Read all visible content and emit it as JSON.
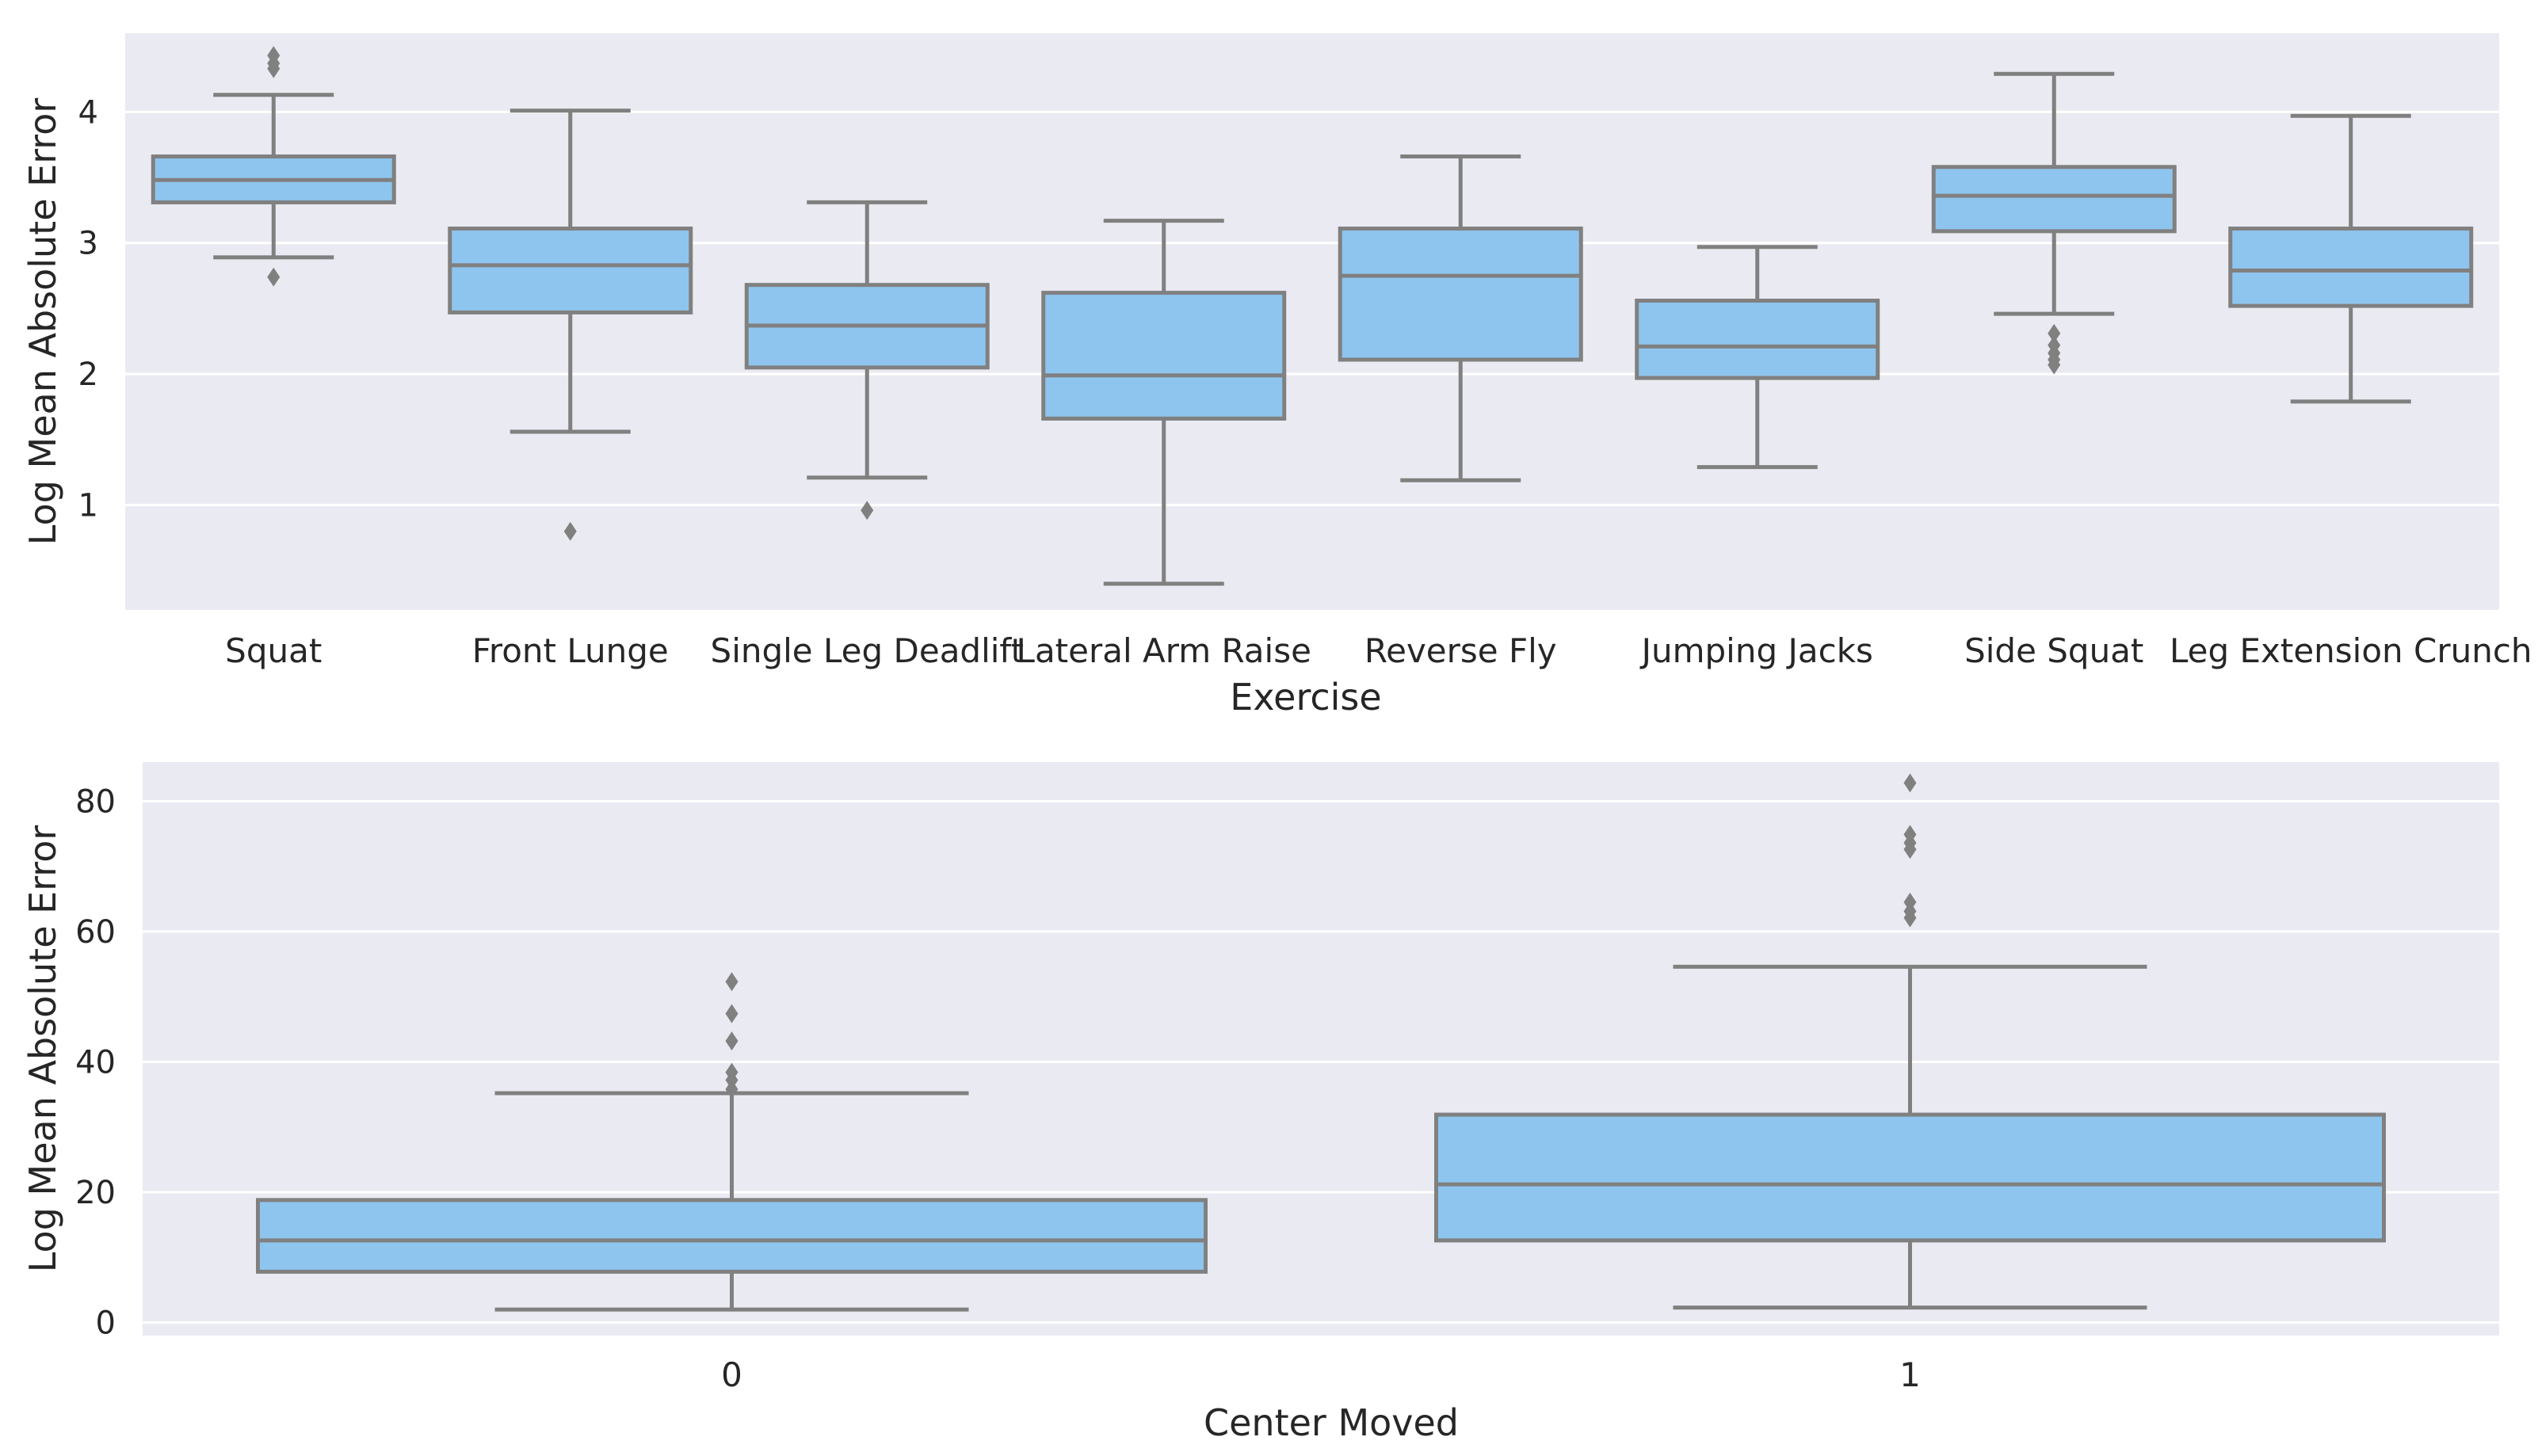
{
  "colors": {
    "plot_background": "#EAEAF2",
    "gridline": "#FFFFFF",
    "box_fill": "#8EC5EE",
    "box_stroke": "#808080"
  },
  "chart_data": [
    {
      "type": "box",
      "xlabel": "Exercise",
      "ylabel": "Log Mean Absolute Error",
      "ylim": [
        0.2,
        4.6
      ],
      "yticks": [
        "1",
        "2",
        "3",
        "4"
      ],
      "grid": true,
      "categories": [
        "Squat",
        "Front Lunge",
        "Single Leg Deadlift",
        "Lateral Arm Raise",
        "Reverse Fly",
        "Jumping Jacks",
        "Side Squat",
        "Leg Extension Crunch"
      ],
      "boxes": [
        {
          "whisker_low": 2.89,
          "q1": 3.31,
          "median": 3.48,
          "q3": 3.66,
          "whisker_high": 4.13,
          "outliers": [
            2.74,
            4.33,
            4.37,
            4.43
          ]
        },
        {
          "whisker_low": 1.56,
          "q1": 2.47,
          "median": 2.83,
          "q3": 3.11,
          "whisker_high": 4.01,
          "outliers": [
            0.8
          ]
        },
        {
          "whisker_low": 1.21,
          "q1": 2.05,
          "median": 2.37,
          "q3": 2.68,
          "whisker_high": 3.31,
          "outliers": [
            0.96
          ]
        },
        {
          "whisker_low": 0.4,
          "q1": 1.66,
          "median": 1.99,
          "q3": 2.62,
          "whisker_high": 3.17,
          "outliers": []
        },
        {
          "whisker_low": 1.19,
          "q1": 2.11,
          "median": 2.75,
          "q3": 3.11,
          "whisker_high": 3.66,
          "outliers": []
        },
        {
          "whisker_low": 1.29,
          "q1": 1.97,
          "median": 2.21,
          "q3": 2.56,
          "whisker_high": 2.97,
          "outliers": []
        },
        {
          "whisker_low": 2.46,
          "q1": 3.09,
          "median": 3.36,
          "q3": 3.58,
          "whisker_high": 4.29,
          "outliers": [
            2.07,
            2.11,
            2.16,
            2.22,
            2.31
          ]
        },
        {
          "whisker_low": 1.79,
          "q1": 2.52,
          "median": 2.79,
          "q3": 3.11,
          "whisker_high": 3.97,
          "outliers": []
        }
      ]
    },
    {
      "type": "box",
      "xlabel": "Center Moved",
      "ylabel": "Log Mean Absolute Error",
      "ylim": [
        -2,
        86
      ],
      "yticks": [
        "0",
        "20",
        "40",
        "60",
        "80"
      ],
      "grid": true,
      "categories": [
        "0",
        "1"
      ],
      "boxes": [
        {
          "whisker_low": 2,
          "q1": 7.8,
          "median": 12.6,
          "q3": 18.8,
          "whisker_high": 35.2,
          "outliers": [
            35.8,
            37.2,
            38.4,
            43.2,
            47.4,
            52.3
          ]
        },
        {
          "whisker_low": 2.3,
          "q1": 12.6,
          "median": 21.2,
          "q3": 31.9,
          "whisker_high": 54.6,
          "outliers": [
            62.1,
            63.1,
            64.5,
            72.6,
            73.6,
            74.9,
            82.8
          ]
        }
      ]
    }
  ]
}
